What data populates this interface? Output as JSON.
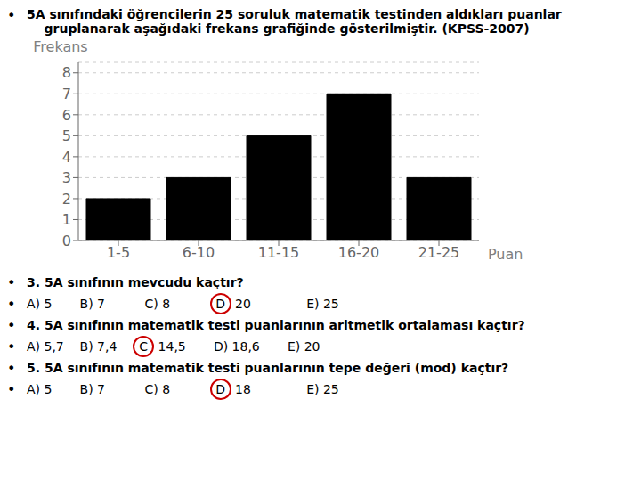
{
  "chart_data": {
    "type": "bar",
    "title": "5A sınıfındaki öğrencilerin 25 soruluk matematik testinden aldıkları puanlar",
    "subtitle": "    gruplanarak aşağıdaki frekans grafiğinde gösterilmiştir. (KPSS-2007)",
    "bullet": "•",
    "categories": [
      "1-5",
      "6-10",
      "11-15",
      "16-20",
      "21-25"
    ],
    "values": [
      2,
      3,
      5,
      7,
      3
    ],
    "color": "#000000",
    "ylabel": "Frekans",
    "xlabel": "Puan",
    "ylim": [
      0,
      8.5
    ],
    "yticks": [
      0,
      1,
      2,
      3,
      4,
      5,
      6,
      7,
      8
    ],
    "grid": true,
    "annotations": [
      {
        "text": "3. 5A sınıfının mevcudu kaçtır?"
      },
      {
        "text": "A) 5       B) 7          C) 8          ",
        "circled": "D",
        "text_after": " 20              E) 25",
        "color": "#cc0000"
      },
      {
        "text": "4. 5A sınıfının matematik testi puanlarının aritmetik ortalaması kaçtır?"
      },
      {
        "text": "A) 5,7    B) 7,4    ",
        "circled": "C",
        "text_after": " 14,5       D) 18,6       E) 20",
        "color": "#cc0000"
      },
      {
        "text": "5. 5A sınıfının matematik testi puanlarının tepe değeri (mod) kaçtır?"
      },
      {
        "text": "A) 5       B) 7          C) 8          ",
        "circled": "D",
        "text_after": " 18              E) 25",
        "color": "#cc0000"
      }
    ]
  }
}
